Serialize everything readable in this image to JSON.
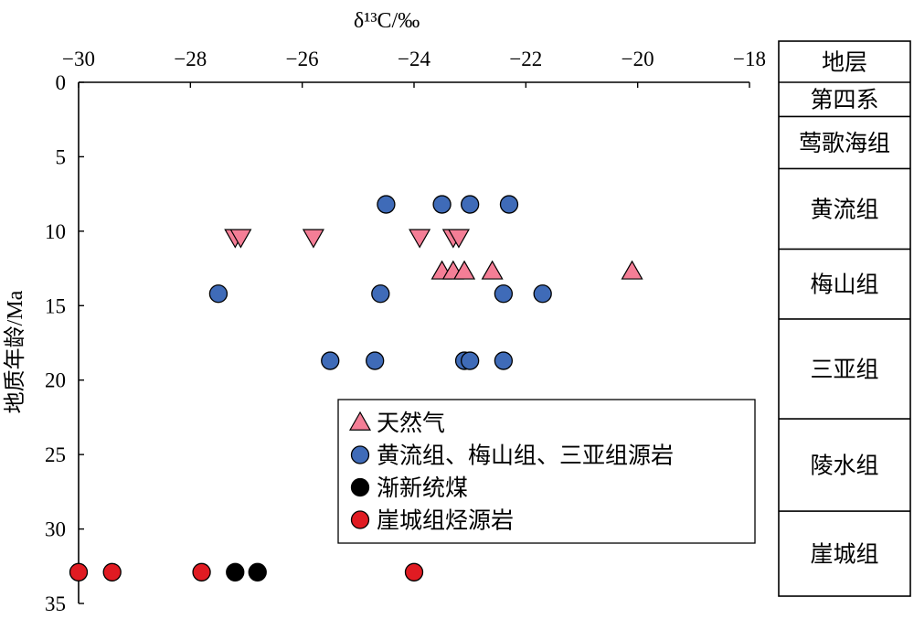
{
  "chart_data": {
    "type": "scatter",
    "xlabel": "δ¹³C/‰",
    "ylabel": "地质年龄/Ma",
    "xlim": [
      -30,
      -18
    ],
    "ylim": [
      0,
      35
    ],
    "x_axis_position": "top",
    "y_axis_inverted": true,
    "grid": false,
    "legend_position": "center-right",
    "x_ticks": [
      -30,
      -28,
      -26,
      -24,
      -22,
      -20,
      -18
    ],
    "x_tick_labels": [
      "−30",
      "−28",
      "−26",
      "−24",
      "−22",
      "−20",
      "−18"
    ],
    "y_ticks": [
      0,
      5,
      10,
      15,
      20,
      25,
      30,
      35
    ],
    "y_tick_labels": [
      "0",
      "5",
      "10",
      "15",
      "20",
      "25",
      "30",
      "35"
    ],
    "series": [
      {
        "name": "天然气",
        "marker": "triangle-up",
        "color": "#f47e96",
        "points": [
          [
            -23.5,
            12.7
          ],
          [
            -23.3,
            12.7
          ],
          [
            -23.1,
            12.7
          ],
          [
            -22.6,
            12.7
          ],
          [
            -20.1,
            12.7
          ]
        ]
      },
      {
        "marker": "triangle-down",
        "color": "#f47e96",
        "points": [
          [
            -27.2,
            10.4
          ],
          [
            -27.1,
            10.4
          ],
          [
            -25.8,
            10.4
          ],
          [
            -23.9,
            10.4
          ],
          [
            -23.3,
            10.4
          ],
          [
            -23.2,
            10.4
          ]
        ]
      },
      {
        "name": "黄流组、梅山组、三亚组源岩",
        "marker": "circle",
        "color": "#3f6bb8",
        "points": [
          [
            -24.5,
            8.2
          ],
          [
            -23.5,
            8.2
          ],
          [
            -23.0,
            8.2
          ],
          [
            -22.3,
            8.2
          ],
          [
            -27.5,
            14.2
          ],
          [
            -24.6,
            14.2
          ],
          [
            -22.4,
            14.2
          ],
          [
            -21.7,
            14.2
          ],
          [
            -25.5,
            18.7
          ],
          [
            -24.7,
            18.7
          ],
          [
            -23.1,
            18.7
          ],
          [
            -23.0,
            18.7
          ],
          [
            -22.4,
            18.7
          ]
        ]
      },
      {
        "name": "渐新统煤",
        "marker": "circle",
        "color": "#000000",
        "points": [
          [
            -27.2,
            32.9
          ],
          [
            -26.8,
            32.9
          ]
        ]
      },
      {
        "name": "崖城组烃源岩",
        "marker": "circle",
        "color": "#e01b22",
        "points": [
          [
            -30.0,
            32.9
          ],
          [
            -29.4,
            32.9
          ],
          [
            -27.8,
            32.9
          ],
          [
            -24.0,
            32.9
          ]
        ]
      }
    ],
    "stratigraphy": {
      "header": "地层",
      "units": [
        {
          "name": "第四系",
          "top": 0,
          "bottom": 2.3
        },
        {
          "name": "莺歌海组",
          "top": 2.3,
          "bottom": 5.8
        },
        {
          "name": "黄流组",
          "top": 5.8,
          "bottom": 11.2
        },
        {
          "name": "梅山组",
          "top": 11.2,
          "bottom": 15.9
        },
        {
          "name": "三亚组",
          "top": 15.9,
          "bottom": 22.6
        },
        {
          "name": "陵水组",
          "top": 22.6,
          "bottom": 28.8
        },
        {
          "name": "崖城组",
          "top": 28.8,
          "bottom": 34.3
        }
      ]
    }
  }
}
